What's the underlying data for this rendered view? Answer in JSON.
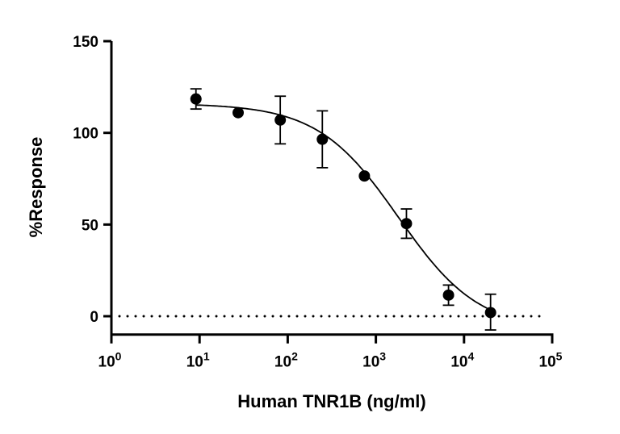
{
  "chart_data": {
    "type": "scatter",
    "xlabel": "Human TNR1B (ng/ml)",
    "ylabel": "%Response",
    "xscale": "log",
    "xlim": [
      1,
      100000
    ],
    "ylim": [
      -10,
      150
    ],
    "x_ticks": [
      {
        "base": "10",
        "exp": "0"
      },
      {
        "base": "10",
        "exp": "1"
      },
      {
        "base": "10",
        "exp": "2"
      },
      {
        "base": "10",
        "exp": "3"
      },
      {
        "base": "10",
        "exp": "4"
      },
      {
        "base": "10",
        "exp": "5"
      }
    ],
    "y_ticks": [
      "0",
      "50",
      "100",
      "150"
    ],
    "grid": false,
    "reference_line": {
      "y": 0,
      "style": "dotted"
    },
    "points": [
      {
        "x": 9.1,
        "y": 118.5,
        "err_low": 113,
        "err_high": 124
      },
      {
        "x": 27.4,
        "y": 111,
        "err_low": 111,
        "err_high": 111
      },
      {
        "x": 82.3,
        "y": 107,
        "err_low": 94,
        "err_high": 120
      },
      {
        "x": 247,
        "y": 96.5,
        "err_low": 81,
        "err_high": 112
      },
      {
        "x": 741,
        "y": 76.5,
        "err_low": 76.5,
        "err_high": 76.5
      },
      {
        "x": 2222,
        "y": 50.5,
        "err_low": 42.5,
        "err_high": 58.5
      },
      {
        "x": 6667,
        "y": 11.5,
        "err_low": 6,
        "err_high": 17
      },
      {
        "x": 20000,
        "y": 2,
        "err_low": -7.5,
        "err_high": 12
      }
    ],
    "fit": {
      "model": "4PL",
      "top": 116,
      "bottom": -8,
      "ic50": 1800,
      "hill": 0.95
    },
    "colors": {
      "points": "#000000",
      "curve": "#000000"
    }
  }
}
